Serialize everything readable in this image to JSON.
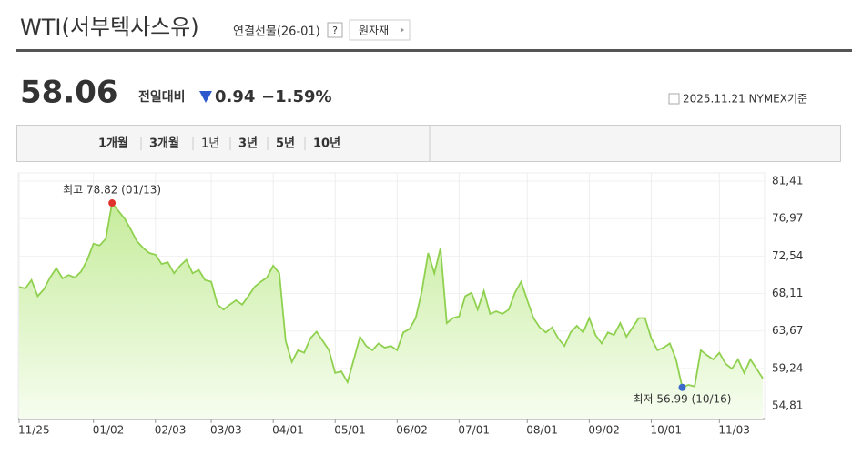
{
  "header": {
    "title": "WTI(서부텍사스유)",
    "subtitle": "연결선물(26-01)",
    "help": "?",
    "button": "원자재"
  },
  "quote": {
    "price": "58.06",
    "change_label": "전일대비",
    "change": "0.94",
    "change_pct": "−1.59%",
    "asof": "2025.11.21 NYMEX기준"
  },
  "tabs": {
    "items": [
      "1개월",
      "3개월",
      "1년",
      "3년",
      "5년",
      "10년"
    ],
    "active": "1년"
  },
  "chart_data": {
    "type": "line",
    "color": "#8fd14f",
    "categories": [
      "11/25",
      null,
      null,
      null,
      null,
      null,
      null,
      null,
      null,
      null,
      null,
      null,
      "01/02",
      null,
      null,
      null,
      null,
      null,
      null,
      null,
      null,
      null,
      "02/03",
      null,
      null,
      null,
      null,
      null,
      null,
      null,
      null,
      "03/03",
      null,
      null,
      null,
      null,
      null,
      null,
      null,
      null,
      null,
      "04/01",
      null,
      null,
      null,
      null,
      null,
      null,
      null,
      null,
      null,
      "05/01",
      null,
      null,
      null,
      null,
      null,
      null,
      null,
      null,
      null,
      "06/02",
      null,
      null,
      null,
      null,
      null,
      null,
      null,
      null,
      null,
      "07/01",
      null,
      null,
      null,
      null,
      null,
      null,
      null,
      null,
      null,
      null,
      "08/01",
      null,
      null,
      null,
      null,
      null,
      null,
      null,
      null,
      null,
      "09/02",
      null,
      null,
      null,
      null,
      null,
      null,
      null,
      null,
      null,
      "10/01",
      null,
      null,
      null,
      null,
      null,
      null,
      null,
      null,
      null,
      null,
      "11/03",
      null,
      null,
      null,
      null,
      null,
      null,
      null
    ],
    "values": [
      68.9,
      68.7,
      69.7,
      67.8,
      68.6,
      70.0,
      71.1,
      69.9,
      70.3,
      70.0,
      70.7,
      72.1,
      74.0,
      73.8,
      74.6,
      78.82,
      77.9,
      77.0,
      75.7,
      74.3,
      73.5,
      72.9,
      72.7,
      71.6,
      71.8,
      70.5,
      71.4,
      72.1,
      70.5,
      70.9,
      69.7,
      69.5,
      66.8,
      66.2,
      66.8,
      67.3,
      66.8,
      67.8,
      68.9,
      69.5,
      70.0,
      71.4,
      70.5,
      62.5,
      60.0,
      61.4,
      61.1,
      62.8,
      63.6,
      62.5,
      61.4,
      58.7,
      58.9,
      57.6,
      60.3,
      63.0,
      61.9,
      61.4,
      62.2,
      61.7,
      61.9,
      61.4,
      63.5,
      63.9,
      65.2,
      68.4,
      72.9,
      70.5,
      73.5,
      64.6,
      65.2,
      65.4,
      67.8,
      68.2,
      66.2,
      68.4,
      65.7,
      66.0,
      65.7,
      66.2,
      68.2,
      69.5,
      67.3,
      65.2,
      64.1,
      63.5,
      64.1,
      62.8,
      61.9,
      63.5,
      64.3,
      63.5,
      65.2,
      63.2,
      62.2,
      63.5,
      63.2,
      64.6,
      63.0,
      64.1,
      65.2,
      65.2,
      62.8,
      61.4,
      61.7,
      62.2,
      60.3,
      56.99,
      57.3,
      57.1,
      61.4,
      60.8,
      60.3,
      61.1,
      59.8,
      59.2,
      60.3,
      58.7,
      60.3,
      59.2,
      58.06
    ],
    "ylim": [
      54.81,
      81.41
    ],
    "yticks": [
      {
        "value": 54.81,
        "label": "54,81"
      },
      {
        "value": 59.24,
        "label": "59,24"
      },
      {
        "value": 63.67,
        "label": "63,67"
      },
      {
        "value": 68.11,
        "label": "68,11"
      },
      {
        "value": 72.54,
        "label": "72,54"
      },
      {
        "value": 76.97,
        "label": "76,97"
      },
      {
        "value": 81.41,
        "label": "81,41"
      }
    ],
    "grid": true,
    "max_label": "최고 78.82 (01/13)",
    "max_color": "#e0322d",
    "min_label": "최저 56.99 (10/16)",
    "min_color": "#3c6acb"
  }
}
